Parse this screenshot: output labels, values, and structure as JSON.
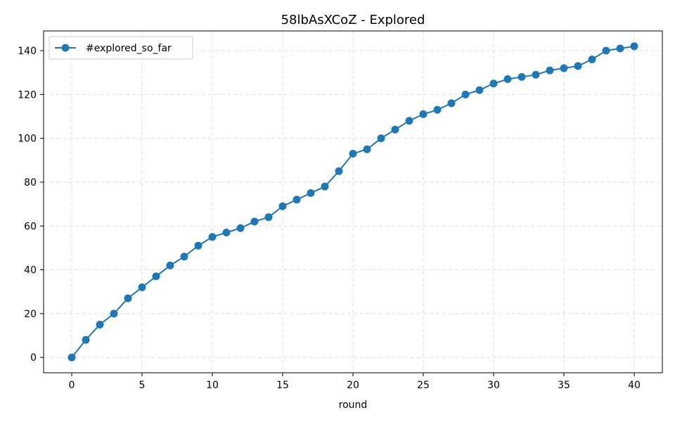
{
  "chart_data": {
    "type": "line",
    "title": "58lbAsXCoZ - Explored",
    "xlabel": "round",
    "ylabel": "",
    "xlim": [
      -2,
      42
    ],
    "ylim": [
      -7,
      149
    ],
    "x_ticks": [
      0,
      5,
      10,
      15,
      20,
      25,
      30,
      35,
      40
    ],
    "y_ticks": [
      0,
      20,
      40,
      60,
      80,
      100,
      120,
      140
    ],
    "grid": true,
    "legend_position": "top-left",
    "series": [
      {
        "name": "#explored_so_far",
        "color": "#1f77b4",
        "marker": "circle",
        "x": [
          0,
          1,
          2,
          3,
          4,
          5,
          6,
          7,
          8,
          9,
          10,
          11,
          12,
          13,
          14,
          15,
          16,
          17,
          18,
          19,
          20,
          21,
          22,
          23,
          24,
          25,
          26,
          27,
          28,
          29,
          30,
          31,
          32,
          33,
          34,
          35,
          36,
          37,
          38,
          39,
          40
        ],
        "values": [
          0,
          8,
          15,
          20,
          27,
          32,
          37,
          42,
          46,
          51,
          55,
          57,
          59,
          62,
          64,
          69,
          72,
          75,
          78,
          85,
          93,
          95,
          100,
          104,
          108,
          111,
          113,
          116,
          120,
          122,
          125,
          127,
          128,
          129,
          131,
          132,
          133,
          136,
          140,
          141,
          142
        ]
      }
    ]
  }
}
